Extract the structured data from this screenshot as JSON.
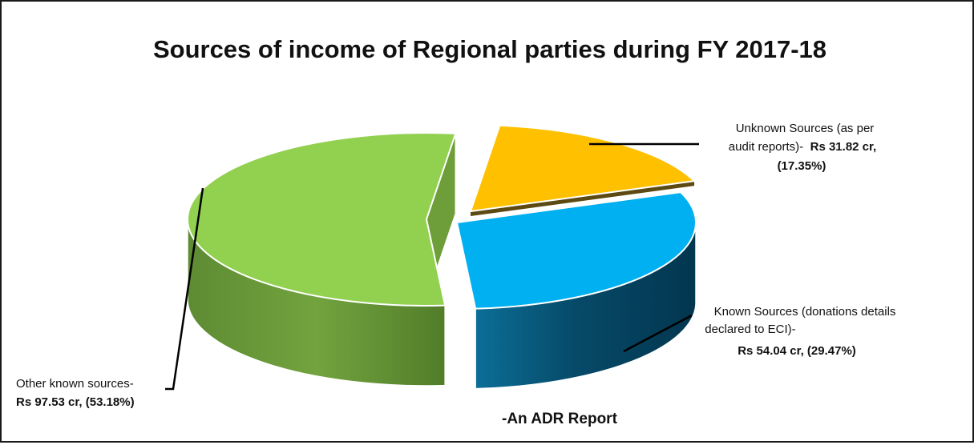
{
  "chart_data": {
    "type": "pie",
    "title": "Sources of income of Regional parties during FY 2017-18",
    "note": "-An ADR Report",
    "slices": [
      {
        "label_line1": "Unknown Sources (as per",
        "label_line2": "audit reports)-",
        "amount": "Rs 31.82 cr,",
        "percent_text": "(17.35%)",
        "value": 31.82,
        "percent": 17.35,
        "color": "#FFC000"
      },
      {
        "label_line1": "Known Sources (donations details",
        "label_line2": "declared to ECI)-",
        "amount": "Rs 54.04 cr, (29.47%)",
        "value": 54.04,
        "percent": 29.47,
        "color": "#00B0F0"
      },
      {
        "label_line1": "Other known sources-",
        "amount": "Rs 97.53 cr, (53.18%)",
        "value": 97.53,
        "percent": 53.18,
        "color": "#92D050"
      }
    ]
  }
}
